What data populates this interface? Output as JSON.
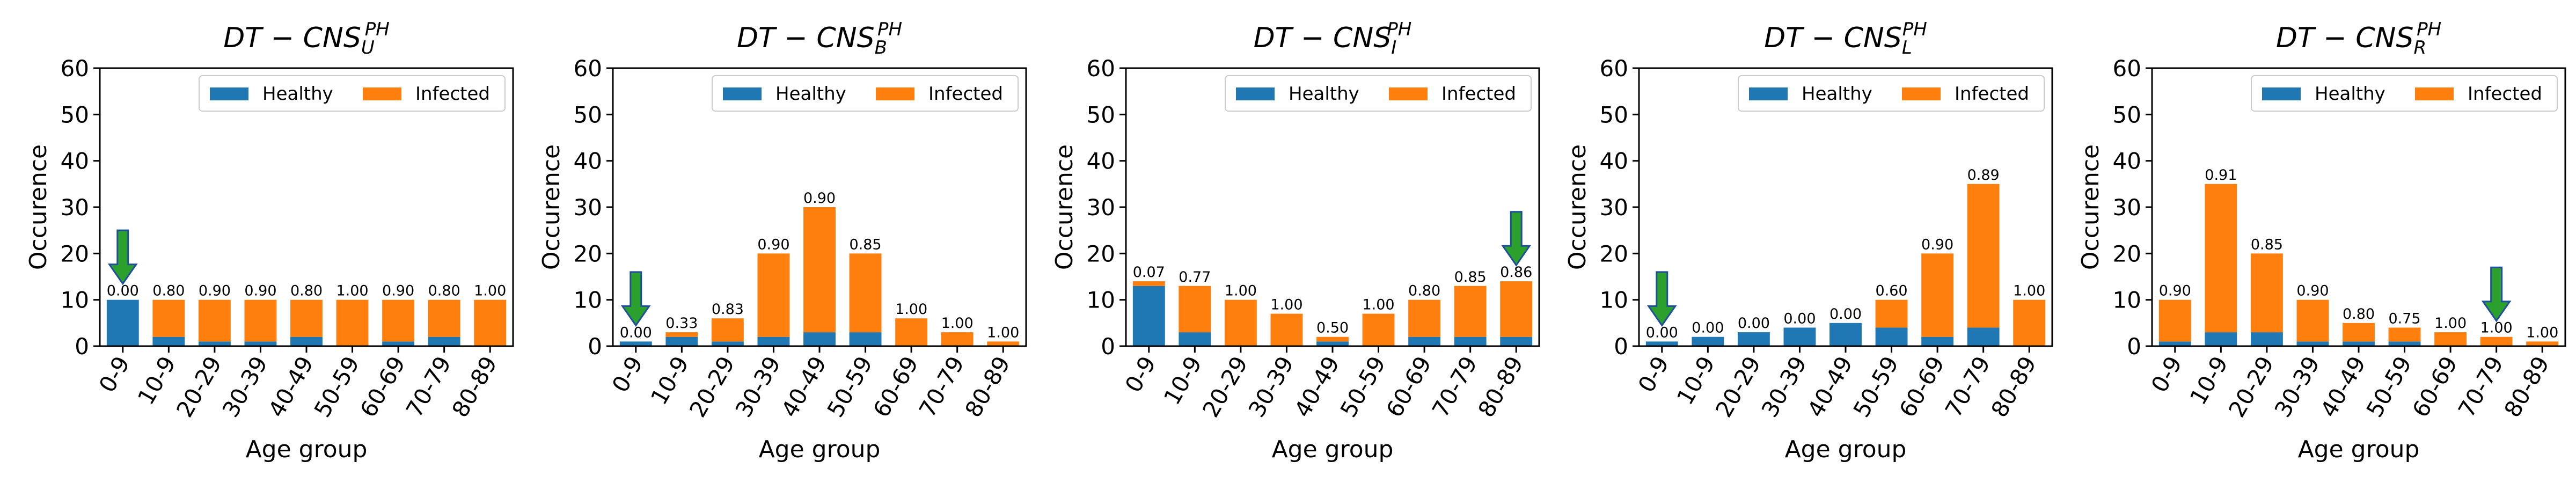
{
  "chart_data": [
    {
      "type": "bar",
      "stacked": true,
      "title": "DT − CNS",
      "title_sub": "U",
      "title_sup": "PH",
      "xlabel": "Age group",
      "ylabel": "Occurence",
      "ylim": [
        0,
        60
      ],
      "yticks": [
        0,
        10,
        20,
        30,
        40,
        50,
        60
      ],
      "categories": [
        "0-9",
        "10-9",
        "20-29",
        "30-39",
        "40-49",
        "50-59",
        "60-69",
        "70-79",
        "80-89"
      ],
      "series": [
        {
          "name": "Healthy",
          "values": [
            10,
            2,
            1,
            1,
            2,
            0,
            1,
            2,
            0
          ]
        },
        {
          "name": "Infected",
          "values": [
            0,
            8,
            9,
            9,
            8,
            10,
            9,
            8,
            10
          ]
        }
      ],
      "bar_labels": [
        "0.00",
        "0.80",
        "0.90",
        "0.90",
        "0.80",
        "1.00",
        "0.90",
        "0.80",
        "1.00"
      ],
      "arrow_category": "0-9",
      "arrow_from": 25,
      "legend": {
        "position": "top-right",
        "entries": [
          "Healthy",
          "Infected"
        ]
      }
    },
    {
      "type": "bar",
      "stacked": true,
      "title": "DT − CNS",
      "title_sub": "B",
      "title_sup": "PH",
      "xlabel": "Age group",
      "ylabel": "Occurence",
      "ylim": [
        0,
        60
      ],
      "yticks": [
        0,
        10,
        20,
        30,
        40,
        50,
        60
      ],
      "categories": [
        "0-9",
        "10-9",
        "20-29",
        "30-39",
        "40-49",
        "50-59",
        "60-69",
        "70-79",
        "80-89"
      ],
      "series": [
        {
          "name": "Healthy",
          "values": [
            1,
            2,
            1,
            2,
            3,
            3,
            0,
            0,
            0
          ]
        },
        {
          "name": "Infected",
          "values": [
            0,
            1,
            5,
            18,
            27,
            17,
            6,
            3,
            1
          ]
        }
      ],
      "bar_labels": [
        "0.00",
        "0.33",
        "0.83",
        "0.90",
        "0.90",
        "0.85",
        "1.00",
        "1.00",
        "1.00"
      ],
      "arrow_category": "0-9",
      "arrow_from": 16,
      "legend": {
        "position": "top-right",
        "entries": [
          "Healthy",
          "Infected"
        ]
      }
    },
    {
      "type": "bar",
      "stacked": true,
      "title": "DT − CNS",
      "title_sub": "I",
      "title_sup": "PH",
      "xlabel": "Age group",
      "ylabel": "Occurence",
      "ylim": [
        0,
        60
      ],
      "yticks": [
        0,
        10,
        20,
        30,
        40,
        50,
        60
      ],
      "categories": [
        "0-9",
        "10-9",
        "20-29",
        "30-39",
        "40-49",
        "50-59",
        "60-69",
        "70-79",
        "80-89"
      ],
      "series": [
        {
          "name": "Healthy",
          "values": [
            13,
            3,
            0,
            0,
            1,
            0,
            2,
            2,
            2
          ]
        },
        {
          "name": "Infected",
          "values": [
            1,
            10,
            10,
            7,
            1,
            7,
            8,
            11,
            12
          ]
        }
      ],
      "bar_labels": [
        "0.07",
        "0.77",
        "1.00",
        "1.00",
        "0.50",
        "1.00",
        "0.80",
        "0.85",
        "0.86"
      ],
      "arrow_category": "80-89",
      "arrow_from": 29,
      "legend": {
        "position": "top-right",
        "entries": [
          "Healthy",
          "Infected"
        ]
      }
    },
    {
      "type": "bar",
      "stacked": true,
      "title": "DT − CNS",
      "title_sub": "L",
      "title_sup": "PH",
      "xlabel": "Age group",
      "ylabel": "Occurence",
      "ylim": [
        0,
        60
      ],
      "yticks": [
        0,
        10,
        20,
        30,
        40,
        50,
        60
      ],
      "categories": [
        "0-9",
        "10-9",
        "20-29",
        "30-39",
        "40-49",
        "50-59",
        "60-69",
        "70-79",
        "80-89"
      ],
      "series": [
        {
          "name": "Healthy",
          "values": [
            1,
            2,
            3,
            4,
            5,
            4,
            2,
            4,
            0
          ]
        },
        {
          "name": "Infected",
          "values": [
            0,
            0,
            0,
            0,
            0,
            6,
            18,
            31,
            10
          ]
        }
      ],
      "bar_labels": [
        "0.00",
        "0.00",
        "0.00",
        "0.00",
        "0.00",
        "0.60",
        "0.90",
        "0.89",
        "1.00"
      ],
      "arrow_category": "0-9",
      "arrow_from": 16,
      "legend": {
        "position": "top-right",
        "entries": [
          "Healthy",
          "Infected"
        ]
      }
    },
    {
      "type": "bar",
      "stacked": true,
      "title": "DT − CNS",
      "title_sub": "R",
      "title_sup": "PH",
      "xlabel": "Age group",
      "ylabel": "Occurence",
      "ylim": [
        0,
        60
      ],
      "yticks": [
        0,
        10,
        20,
        30,
        40,
        50,
        60
      ],
      "categories": [
        "0-9",
        "10-9",
        "20-29",
        "30-39",
        "40-49",
        "50-59",
        "60-69",
        "70-79",
        "80-89"
      ],
      "series": [
        {
          "name": "Healthy",
          "values": [
            1,
            3,
            3,
            1,
            1,
            1,
            0,
            0,
            0
          ]
        },
        {
          "name": "Infected",
          "values": [
            9,
            32,
            17,
            9,
            4,
            3,
            3,
            2,
            1
          ]
        }
      ],
      "bar_labels": [
        "0.90",
        "0.91",
        "0.85",
        "0.90",
        "0.80",
        "0.75",
        "1.00",
        "1.00",
        "1.00"
      ],
      "arrow_category": "70-79",
      "arrow_from": 17,
      "legend": {
        "position": "top-right",
        "entries": [
          "Healthy",
          "Infected"
        ]
      }
    }
  ],
  "colors": {
    "healthy": "#1f77b4",
    "infected": "#ff7f0e",
    "arrow_fill": "#2ca02c",
    "arrow_stroke": "#1f4e9c"
  }
}
